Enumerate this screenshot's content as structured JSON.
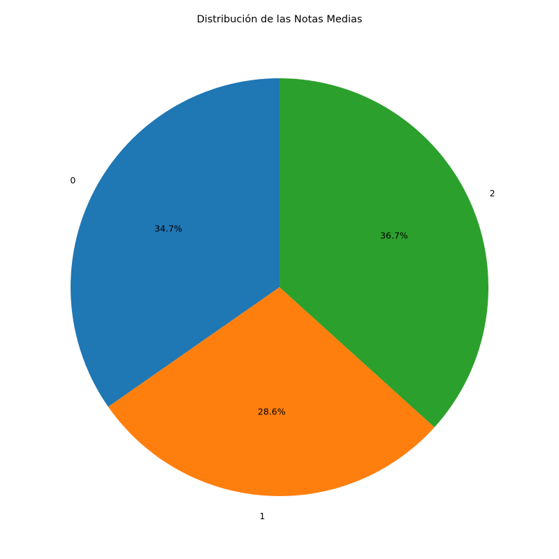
{
  "chart_data": {
    "type": "pie",
    "title": "Distribución de las Notas Medias",
    "labels": [
      "0",
      "1",
      "2"
    ],
    "values": [
      34.7,
      28.6,
      36.7
    ],
    "percent_labels": [
      "34.7%",
      "28.6%",
      "36.7%"
    ],
    "colors": [
      "#1f77b4",
      "#ff7f0e",
      "#2ca02c"
    ],
    "start_angle_deg": 90,
    "direction": "counterclockwise",
    "legend": "none"
  }
}
